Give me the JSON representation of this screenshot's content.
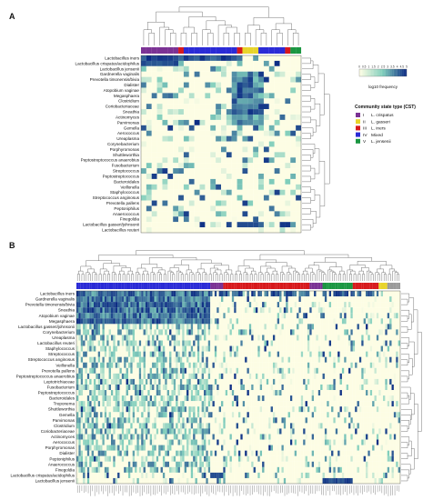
{
  "chart_data": [
    {
      "type": "heatmap",
      "panel_label": "A",
      "rows": [
        "Lactobacillus iners",
        "Lactobacillus crispatus/acidophilus",
        "Lactobacillus jensenii",
        "Gardnerella vaginalis",
        "Prevotella timonensis/bivia",
        "Dialister",
        "Atopobium vaginae",
        "Megasphaera",
        "Clostridium",
        "Coriobacteriaceae",
        "Sneathia",
        "Actinomyces",
        "Parvimonas",
        "Gemella",
        "Aerococcus",
        "Ureaplasma",
        "Corynebacterium",
        "Porphyromonas",
        "Shuttleworthia",
        "Peptostreptococcus anaerobius",
        "Fusobacterium",
        "Streptococcus",
        "Peptostreptococcus",
        "Bacteroidales",
        "Veillonella",
        "Staphylococcus",
        "Streptococcus anginosus",
        "Prevotella pallens",
        "Peptoniphilus",
        "Anaerococcus",
        "Finegoldia",
        "Lactobacillus gasseri/johnsonii",
        "Lactobacillus reuteri"
      ],
      "column_groups": [
        "I",
        "I",
        "I",
        "I",
        "I",
        "I",
        "I",
        "III",
        "IV",
        "IV",
        "IV",
        "IV",
        "IV",
        "IV",
        "IV",
        "IV",
        "IV",
        "IV",
        "III",
        "II",
        "II",
        "II",
        "IV",
        "IV",
        "IV",
        "IV",
        "IV",
        "III",
        "V",
        "V"
      ],
      "values": []
    },
    {
      "type": "heatmap",
      "panel_label": "B",
      "rows": [
        "Lactobacillus iners",
        "Gardnerella vaginalis",
        "Prevotella timonensis/bivia",
        "Sneathia",
        "Atopobium vaginae",
        "Megasphaera",
        "Lactobacillus gasseri/johnsonii",
        "Corynebacterium",
        "Ureaplasma",
        "Lactobacillus reuteri",
        "Staphylococcus",
        "Streptococcus",
        "Streptococcus anginosus",
        "Veillonella",
        "Prevotella pallens",
        "Peptostreptococcus anaerobius",
        "Leptotrichiaceae",
        "Fusobacterium",
        "Peptostreptococcus",
        "Bacteroidales",
        "Treponema",
        "Shuttleworthia",
        "Gemella",
        "Parvimonas",
        "Clostridium",
        "Coriobacteriaceae",
        "Actinomyces",
        "Aerococcus",
        "Porphyromonas",
        "Dialister",
        "Peptoniphilus",
        "Anaerococcus",
        "Finegoldia",
        "Lactobacillus crispatus/acidophilus",
        "Lactobacillus jensenii"
      ],
      "column_groups": []
    }
  ],
  "colorbar": {
    "label": "log10 frequency",
    "ticks": [
      "0",
      "0.5",
      "1",
      "1.5",
      "2",
      "2.5",
      "3",
      "3.5",
      "4",
      "4.5",
      "5"
    ]
  },
  "legend": {
    "title": "Community state type (CST)",
    "items": [
      {
        "roman": "I",
        "name": "L. crispatus",
        "color": "#7b3294"
      },
      {
        "roman": "II",
        "name": "L. gasseri",
        "color": "#e8d42a"
      },
      {
        "roman": "III",
        "name": "L. iners",
        "color": "#d7191c"
      },
      {
        "roman": "IV",
        "name": "Mixed",
        "color": "#2b2bd6"
      },
      {
        "roman": "V",
        "name": "L. jensenii",
        "color": "#1a9641"
      }
    ]
  },
  "colors": {
    "low": "#fdfde4",
    "mid": "#7fcdbb",
    "high": "#0c2c84",
    "na": "#9a9a9a"
  }
}
